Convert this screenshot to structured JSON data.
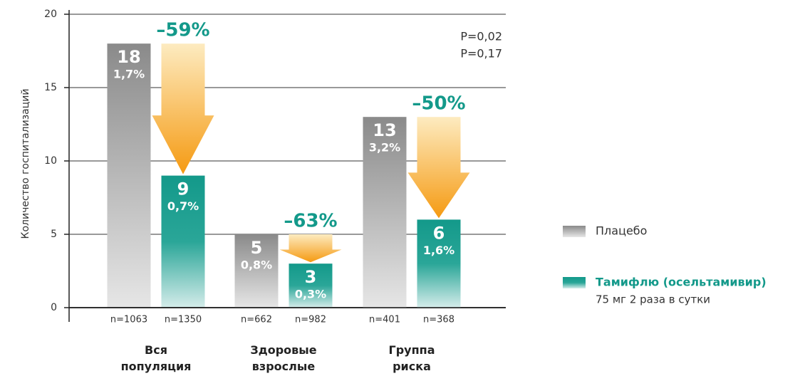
{
  "chart_data": {
    "type": "bar",
    "y_axis_label": "Количество госпитализаций",
    "categories": [
      "Вся популяция",
      "Здоровые взрослые",
      "Группа риска"
    ],
    "series": [
      {
        "name": "Плацебо",
        "color": "#8c8c8c",
        "values": [
          18,
          5,
          13
        ],
        "percent_labels": [
          "1,7%",
          "0,8%",
          "3,2%"
        ],
        "n_labels": [
          "n=1063",
          "n=662",
          "n=401"
        ]
      },
      {
        "name": "Тамифлю (осельтамивир)",
        "subtitle": "75 мг 2 раза в сутки",
        "color": "#13998a",
        "values": [
          9,
          3,
          6
        ],
        "percent_labels": [
          "0,7%",
          "0,3%",
          "1,6%"
        ],
        "n_labels": [
          "n=1350",
          "n=982",
          "n=368"
        ]
      }
    ],
    "reduction_labels": [
      "–59%",
      "–63%",
      "–50%"
    ],
    "p_values": [
      "P=0,02",
      "P=0,17"
    ],
    "ylim": [
      0,
      20
    ],
    "yticks": [
      0,
      5,
      10,
      15,
      20
    ],
    "grid": true
  }
}
